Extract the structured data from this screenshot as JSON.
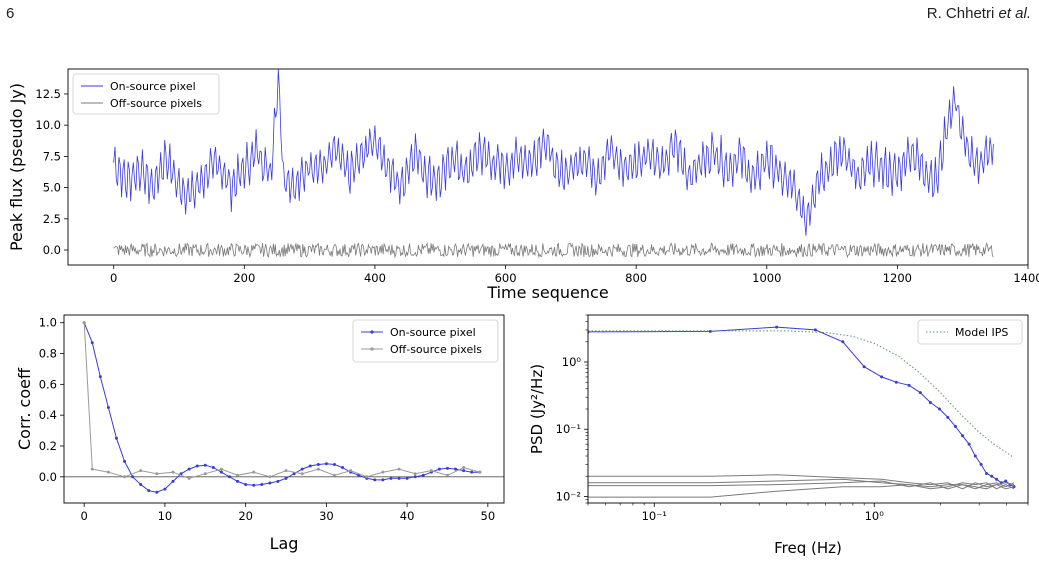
{
  "header": {
    "page_number": "6",
    "author": "R. Chhetri",
    "author_suffix": "et al."
  },
  "chart_data": [
    {
      "id": "timeseries",
      "type": "line",
      "title": "",
      "xlabel": "Time sequence",
      "ylabel": "Peak flux (pseudo Jy)",
      "xlim": [
        -70,
        1400
      ],
      "ylim": [
        -1.2,
        14.5
      ],
      "xticks": [
        0,
        200,
        400,
        600,
        800,
        1000,
        1200,
        1400
      ],
      "xtick_labels": [
        "0",
        "200",
        "400",
        "600",
        "800",
        "1000",
        "1200",
        "1400"
      ],
      "yticks": [
        0,
        2.5,
        5,
        7.5,
        10,
        12.5
      ],
      "ytick_labels": [
        "0.0",
        "2.5",
        "5.0",
        "7.5",
        "10.0",
        "12.5"
      ],
      "grid": false,
      "legend": "top-left",
      "series": [
        {
          "name": "On-source pixel",
          "color": "#3b3bd9",
          "x": [
            0,
            20,
            40,
            60,
            80,
            100,
            120,
            140,
            160,
            180,
            200,
            220,
            240,
            252,
            260,
            280,
            300,
            320,
            340,
            360,
            380,
            400,
            420,
            440,
            460,
            480,
            500,
            520,
            540,
            560,
            580,
            600,
            620,
            640,
            660,
            680,
            700,
            720,
            740,
            760,
            780,
            800,
            820,
            840,
            860,
            880,
            900,
            920,
            940,
            960,
            980,
            1000,
            1020,
            1040,
            1060,
            1080,
            1100,
            1120,
            1140,
            1160,
            1180,
            1200,
            1220,
            1240,
            1260,
            1280,
            1290,
            1300,
            1320,
            1340,
            1347
          ],
          "y": [
            7.0,
            5.5,
            6.5,
            5.0,
            7.5,
            5.0,
            4.5,
            6.0,
            7.0,
            5.0,
            6.5,
            8.0,
            6.0,
            14.0,
            6.0,
            5.0,
            7.0,
            6.5,
            8.0,
            6.0,
            7.5,
            9.0,
            6.5,
            5.0,
            8.0,
            6.0,
            5.5,
            7.5,
            6.0,
            8.0,
            7.0,
            6.5,
            7.5,
            7.0,
            9.0,
            6.0,
            6.5,
            7.5,
            6.0,
            8.0,
            6.5,
            7.0,
            8.0,
            6.5,
            8.5,
            6.0,
            7.0,
            8.0,
            6.5,
            7.5,
            5.5,
            7.5,
            6.0,
            5.0,
            2.5,
            6.0,
            7.0,
            8.0,
            5.5,
            7.0,
            6.5,
            6.0,
            8.0,
            6.5,
            5.5,
            11.0,
            12.0,
            9.0,
            6.5,
            8.0,
            8.5
          ]
        },
        {
          "name": "Off-source pixels",
          "color": "#7a7a7a",
          "x": [
            0,
            100,
            200,
            300,
            400,
            500,
            600,
            700,
            800,
            900,
            1000,
            1100,
            1200,
            1300,
            1347
          ],
          "y": [
            0.1,
            0.0,
            0.1,
            -0.1,
            0.2,
            0.0,
            0.1,
            0.0,
            -0.1,
            0.1,
            0.0,
            0.1,
            0.0,
            0.1,
            0.0
          ]
        }
      ]
    },
    {
      "id": "autocorr",
      "type": "line",
      "title": "",
      "xlabel": "Lag",
      "ylabel": "Corr. coeff",
      "xlim": [
        -2.5,
        52
      ],
      "ylim": [
        -0.17,
        1.05
      ],
      "xticks": [
        0,
        10,
        20,
        30,
        40,
        50
      ],
      "xtick_labels": [
        "0",
        "10",
        "20",
        "30",
        "40",
        "50"
      ],
      "yticks": [
        0,
        0.2,
        0.4,
        0.6,
        0.8,
        1.0
      ],
      "ytick_labels": [
        "0.0",
        "0.2",
        "0.4",
        "0.6",
        "0.8",
        "1.0"
      ],
      "grid": false,
      "legend": "top-right",
      "series": [
        {
          "name": "On-source pixel",
          "color": "#3b3bd9",
          "x": [
            0,
            1,
            2,
            3,
            4,
            5,
            6,
            7,
            8,
            9,
            10,
            11,
            12,
            13,
            14,
            15,
            16,
            17,
            18,
            19,
            20,
            21,
            22,
            23,
            24,
            25,
            26,
            27,
            28,
            29,
            30,
            31,
            32,
            33,
            34,
            35,
            36,
            37,
            38,
            39,
            40,
            41,
            42,
            43,
            44,
            45,
            46,
            47,
            48,
            49
          ],
          "y": [
            1.0,
            0.87,
            0.65,
            0.45,
            0.25,
            0.1,
            0.0,
            -0.05,
            -0.09,
            -0.1,
            -0.08,
            -0.03,
            0.02,
            0.05,
            0.07,
            0.075,
            0.06,
            0.03,
            0.0,
            -0.03,
            -0.05,
            -0.055,
            -0.05,
            -0.04,
            -0.03,
            -0.01,
            0.02,
            0.05,
            0.07,
            0.08,
            0.085,
            0.08,
            0.06,
            0.03,
            0.01,
            -0.01,
            -0.02,
            -0.02,
            -0.01,
            -0.01,
            -0.01,
            0.0,
            0.01,
            0.03,
            0.05,
            0.055,
            0.05,
            0.04,
            0.03,
            0.03
          ]
        },
        {
          "name": "Off-source pixels",
          "color": "#9a9a9a",
          "x": [
            0,
            1,
            3,
            5,
            7,
            9,
            11,
            13,
            15,
            17,
            19,
            21,
            23,
            25,
            27,
            29,
            31,
            33,
            35,
            37,
            39,
            41,
            43,
            45,
            47,
            49
          ],
          "y": [
            1.0,
            0.05,
            0.03,
            0.0,
            0.04,
            0.02,
            0.03,
            -0.01,
            0.02,
            0.05,
            0.01,
            0.03,
            0.0,
            0.04,
            0.02,
            0.05,
            0.01,
            0.04,
            0.0,
            0.03,
            0.05,
            0.02,
            0.04,
            0.01,
            0.06,
            0.03
          ]
        }
      ]
    },
    {
      "id": "psd",
      "type": "line",
      "title": "",
      "xlabel": "Freq (Hz)",
      "ylabel": "PSD (Jy²/Hz)",
      "xscale": "log",
      "yscale": "log",
      "xlim": [
        0.05,
        5
      ],
      "ylim": [
        0.008,
        5
      ],
      "xticks": [
        0.1,
        1
      ],
      "xtick_labels": [
        "10⁻¹",
        "10⁰"
      ],
      "yticks": [
        0.01,
        0.1,
        1
      ],
      "ytick_labels": [
        "10⁻²",
        "10⁻¹",
        "10⁰"
      ],
      "grid": false,
      "legend": "top-right",
      "series": [
        {
          "name": "",
          "color": "#3b3bd9",
          "x": [
            0.05,
            0.18,
            0.36,
            0.54,
            0.72,
            0.9,
            1.08,
            1.26,
            1.44,
            1.62,
            1.8,
            1.98,
            2.16,
            2.34,
            2.52,
            2.7,
            2.88,
            3.06,
            3.24,
            3.42,
            3.6,
            3.78,
            3.96,
            4.14,
            4.32
          ],
          "y": [
            2.8,
            2.85,
            3.3,
            3.0,
            2.0,
            0.85,
            0.6,
            0.5,
            0.45,
            0.35,
            0.25,
            0.2,
            0.15,
            0.11,
            0.08,
            0.06,
            0.04,
            0.03,
            0.022,
            0.02,
            0.018,
            0.016,
            0.017,
            0.015,
            0.014
          ]
        },
        {
          "name": "Model IPS",
          "color": "#5a9a5a",
          "x": [
            0.05,
            0.2,
            0.4,
            0.6,
            0.8,
            1.0,
            1.3,
            1.6,
            2.0,
            2.5,
            3.0,
            3.5,
            4.0,
            4.3
          ],
          "y": [
            2.9,
            2.9,
            2.9,
            2.75,
            2.4,
            1.9,
            1.2,
            0.7,
            0.35,
            0.16,
            0.09,
            0.06,
            0.045,
            0.038
          ]
        },
        {
          "name": "",
          "color": "#7a7a7a",
          "x": [
            0.05,
            0.18,
            0.36,
            0.72,
            1.08,
            1.44,
            1.8,
            2.16,
            2.52,
            2.88,
            3.24,
            3.6,
            3.96,
            4.32
          ],
          "y": [
            0.02,
            0.02,
            0.021,
            0.019,
            0.018,
            0.016,
            0.015,
            0.016,
            0.013,
            0.016,
            0.014,
            0.015,
            0.016,
            0.015
          ]
        },
        {
          "name": "",
          "color": "#7a7a7a",
          "x": [
            0.05,
            0.18,
            0.36,
            0.72,
            1.08,
            1.44,
            1.8,
            2.16,
            2.52,
            2.88,
            3.24,
            3.6,
            3.96,
            4.32
          ],
          "y": [
            0.016,
            0.016,
            0.017,
            0.018,
            0.016,
            0.015,
            0.014,
            0.015,
            0.015,
            0.013,
            0.015,
            0.016,
            0.014,
            0.016
          ]
        },
        {
          "name": "",
          "color": "#7a7a7a",
          "x": [
            0.05,
            0.18,
            0.36,
            0.72,
            1.08,
            1.44,
            1.8,
            2.16,
            2.52,
            2.88,
            3.24,
            3.6,
            3.96,
            4.32
          ],
          "y": [
            0.0145,
            0.0145,
            0.015,
            0.016,
            0.017,
            0.014,
            0.016,
            0.013,
            0.015,
            0.014,
            0.013,
            0.015,
            0.013,
            0.014
          ]
        },
        {
          "name": "",
          "color": "#7a7a7a",
          "x": [
            0.05,
            0.18,
            0.36,
            0.72,
            1.08,
            1.44,
            1.8,
            2.16,
            2.52,
            2.88,
            3.24,
            3.6,
            3.96,
            4.32
          ],
          "y": [
            0.0098,
            0.0098,
            0.012,
            0.014,
            0.014,
            0.015,
            0.013,
            0.014,
            0.016,
            0.015,
            0.016,
            0.013,
            0.015,
            0.013
          ]
        }
      ]
    }
  ]
}
